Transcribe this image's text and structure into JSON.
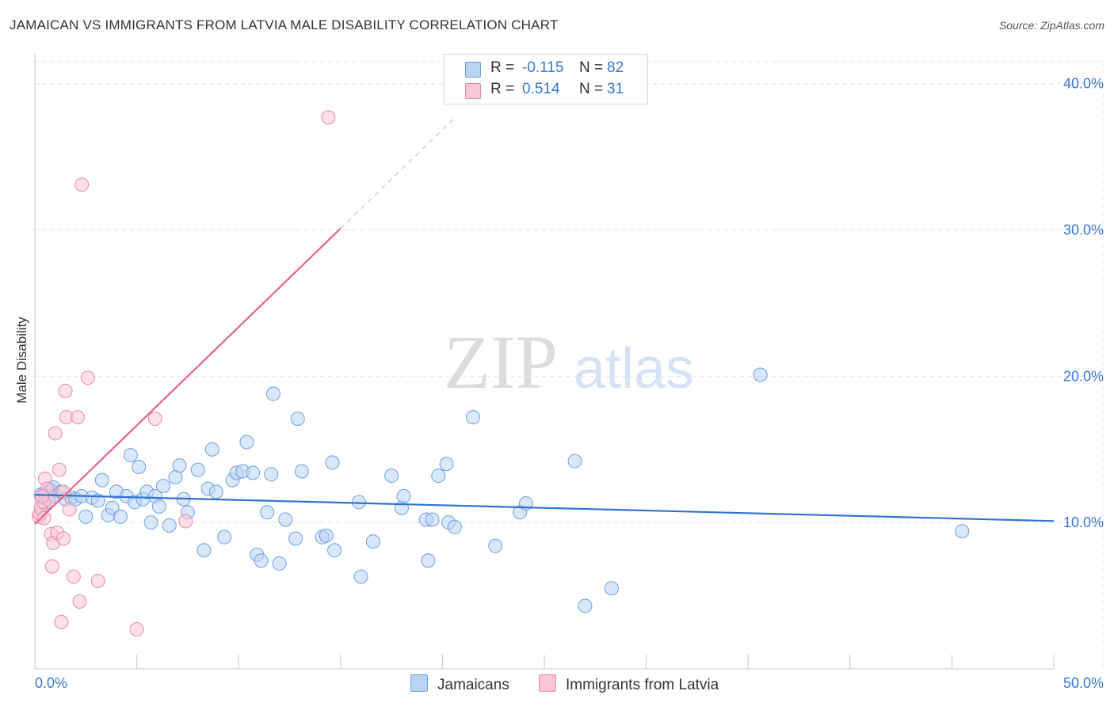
{
  "title": "JAMAICAN VS IMMIGRANTS FROM LATVIA MALE DISABILITY CORRELATION CHART",
  "source": "Source: ZipAtlas.com",
  "watermark": {
    "zip": "ZIP",
    "atlas": "atlas"
  },
  "legend": {
    "rows": [
      {
        "r_label": "R =",
        "r_value": "-0.115",
        "n_label": "N =",
        "n_value": "82",
        "fill": "#b9d3f5",
        "stroke": "#6f9fe0"
      },
      {
        "r_label": "R =",
        "r_value": "0.514",
        "n_label": "N =",
        "n_value": "31",
        "fill": "#f9c6d6",
        "stroke": "#e68aa8"
      }
    ]
  },
  "bottom_legend": {
    "series1": "Jamaicans",
    "series2": "Immigrants from Latvia"
  },
  "chart_data": {
    "type": "scatter",
    "title": "JAMAICAN VS IMMIGRANTS FROM LATVIA MALE DISABILITY CORRELATION CHART",
    "xlabel": "",
    "ylabel": "Male Disability",
    "xlim": [
      0,
      50
    ],
    "ylim": [
      0,
      41.5
    ],
    "x_tick_labels": [
      "0.0%",
      "50.0%"
    ],
    "y_ticks": [
      10,
      20,
      30,
      40
    ],
    "y_tick_labels": [
      "10.0%",
      "20.0%",
      "30.0%",
      "40.0%"
    ],
    "grid": true,
    "series": [
      {
        "name": "Jamaicans",
        "color": "#6f9fe0",
        "fill": "#b9d3f5",
        "line_color": "#2f74d0",
        "trend": {
          "x0": 0.0,
          "y0": 11.9,
          "x1": 50.0,
          "y1": 10.1
        },
        "points": [
          [
            0.3,
            11.9
          ],
          [
            0.5,
            12.0
          ],
          [
            0.6,
            11.6
          ],
          [
            0.8,
            12.2
          ],
          [
            0.9,
            12.4
          ],
          [
            1.0,
            11.8
          ],
          [
            1.3,
            12.1
          ],
          [
            1.5,
            11.6
          ],
          [
            1.8,
            11.7
          ],
          [
            2.0,
            11.6
          ],
          [
            2.3,
            11.8
          ],
          [
            2.5,
            10.4
          ],
          [
            2.8,
            11.7
          ],
          [
            3.1,
            11.5
          ],
          [
            3.3,
            12.9
          ],
          [
            3.6,
            10.5
          ],
          [
            3.8,
            11.0
          ],
          [
            4.0,
            12.1
          ],
          [
            4.2,
            10.4
          ],
          [
            4.5,
            11.8
          ],
          [
            4.7,
            14.6
          ],
          [
            4.9,
            11.4
          ],
          [
            5.1,
            13.8
          ],
          [
            5.3,
            11.6
          ],
          [
            5.5,
            12.1
          ],
          [
            5.7,
            10.0
          ],
          [
            5.9,
            11.8
          ],
          [
            6.1,
            11.1
          ],
          [
            6.3,
            12.5
          ],
          [
            6.6,
            9.8
          ],
          [
            6.9,
            13.1
          ],
          [
            7.1,
            13.9
          ],
          [
            7.3,
            11.6
          ],
          [
            7.5,
            10.7
          ],
          [
            8.0,
            13.6
          ],
          [
            8.3,
            8.1
          ],
          [
            8.5,
            12.3
          ],
          [
            8.7,
            15.0
          ],
          [
            8.9,
            12.1
          ],
          [
            9.3,
            9.0
          ],
          [
            9.7,
            12.9
          ],
          [
            9.9,
            13.4
          ],
          [
            10.2,
            13.5
          ],
          [
            10.4,
            15.5
          ],
          [
            10.7,
            13.4
          ],
          [
            10.9,
            7.8
          ],
          [
            11.1,
            7.4
          ],
          [
            11.4,
            10.7
          ],
          [
            11.6,
            13.3
          ],
          [
            11.7,
            18.8
          ],
          [
            12.0,
            7.2
          ],
          [
            12.3,
            10.2
          ],
          [
            12.8,
            8.9
          ],
          [
            12.9,
            17.1
          ],
          [
            13.1,
            13.5
          ],
          [
            14.1,
            9.0
          ],
          [
            14.3,
            9.1
          ],
          [
            14.6,
            14.1
          ],
          [
            14.7,
            8.1
          ],
          [
            15.9,
            11.4
          ],
          [
            16.0,
            6.3
          ],
          [
            16.6,
            8.7
          ],
          [
            17.5,
            13.2
          ],
          [
            18.0,
            11.0
          ],
          [
            18.1,
            11.8
          ],
          [
            19.2,
            10.2
          ],
          [
            19.3,
            7.4
          ],
          [
            19.5,
            10.2
          ],
          [
            19.8,
            13.2
          ],
          [
            20.2,
            14.0
          ],
          [
            20.3,
            10.0
          ],
          [
            20.6,
            9.7
          ],
          [
            21.5,
            17.2
          ],
          [
            22.6,
            8.4
          ],
          [
            23.8,
            10.7
          ],
          [
            24.1,
            11.3
          ],
          [
            26.5,
            14.2
          ],
          [
            27.0,
            4.3
          ],
          [
            28.3,
            5.5
          ],
          [
            35.6,
            20.1
          ],
          [
            45.5,
            9.4
          ],
          [
            0.5,
            11.3
          ]
        ]
      },
      {
        "name": "Immigrants from Latvia",
        "color": "#e68aa8",
        "fill": "#f9c6d6",
        "line_color": "#e8638a",
        "trend": {
          "x0": 0.0,
          "y0": 9.9,
          "x1": 15.0,
          "y1": 30.1
        },
        "trend_dashed_to": {
          "x": 20.7,
          "y": 37.8
        },
        "points": [
          [
            0.2,
            10.4
          ],
          [
            0.25,
            10.6
          ],
          [
            0.3,
            11.0
          ],
          [
            0.4,
            11.4
          ],
          [
            0.45,
            10.3
          ],
          [
            0.5,
            13.0
          ],
          [
            0.6,
            12.3
          ],
          [
            0.7,
            11.5
          ],
          [
            0.8,
            9.2
          ],
          [
            0.85,
            7.0
          ],
          [
            0.9,
            8.6
          ],
          [
            1.0,
            16.1
          ],
          [
            1.1,
            9.3
          ],
          [
            1.2,
            13.6
          ],
          [
            1.3,
            3.2
          ],
          [
            1.4,
            12.1
          ],
          [
            1.4,
            8.9
          ],
          [
            1.5,
            19.0
          ],
          [
            1.55,
            17.2
          ],
          [
            1.7,
            10.9
          ],
          [
            1.9,
            6.3
          ],
          [
            2.1,
            17.2
          ],
          [
            2.2,
            4.6
          ],
          [
            2.3,
            33.1
          ],
          [
            2.6,
            19.9
          ],
          [
            3.1,
            6.0
          ],
          [
            5.0,
            2.7
          ],
          [
            5.9,
            17.1
          ],
          [
            7.4,
            10.1
          ],
          [
            14.4,
            37.7
          ],
          [
            0.35,
            11.8
          ]
        ]
      }
    ]
  }
}
